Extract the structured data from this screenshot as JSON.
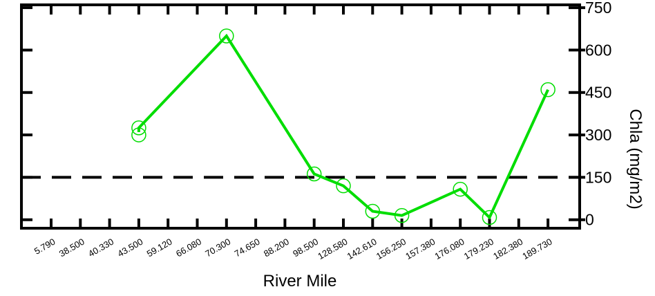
{
  "chart_data": {
    "type": "line",
    "title": "",
    "xlabel": "River Mile",
    "ylabel": "Chla (mg/m2)",
    "categories": [
      "5.790",
      "38.500",
      "40.330",
      "43.500",
      "59.120",
      "66.080",
      "70.300",
      "74.650",
      "88.200",
      "98.500",
      "128.580",
      "142.610",
      "156.250",
      "157.380",
      "176.080",
      "179.230",
      "182.380",
      "189.730"
    ],
    "yticks": [
      "0",
      "150",
      "300",
      "450",
      "600",
      "750"
    ],
    "ylim": [
      -30,
      760
    ],
    "y_axis_side": "right",
    "reference_line": {
      "value": 150,
      "style": "dashed",
      "color": "#000000"
    },
    "series": [
      {
        "color": "#00dd00",
        "marker": "open-circle",
        "line_points": [
          {
            "x": "43.500",
            "y": 310
          },
          {
            "x": "43.500",
            "y": 325
          },
          {
            "x": "70.300",
            "y": 650
          },
          {
            "x": "98.500",
            "y": 162
          },
          {
            "x": "128.580",
            "y": 120
          },
          {
            "x": "142.610",
            "y": 30
          },
          {
            "x": "156.250",
            "y": 15
          },
          {
            "x": "176.080",
            "y": 108
          },
          {
            "x": "179.230",
            "y": 8
          },
          {
            "x": "189.730",
            "y": 460
          }
        ],
        "markers": [
          {
            "x": "43.500",
            "y": 325
          },
          {
            "x": "43.500",
            "y": 300
          },
          {
            "x": "70.300",
            "y": 650
          },
          {
            "x": "98.500",
            "y": 162
          },
          {
            "x": "128.580",
            "y": 120
          },
          {
            "x": "142.610",
            "y": 30
          },
          {
            "x": "156.250",
            "y": 15
          },
          {
            "x": "176.080",
            "y": 108
          },
          {
            "x": "179.230",
            "y": 8
          },
          {
            "x": "189.730",
            "y": 460
          }
        ]
      }
    ]
  }
}
